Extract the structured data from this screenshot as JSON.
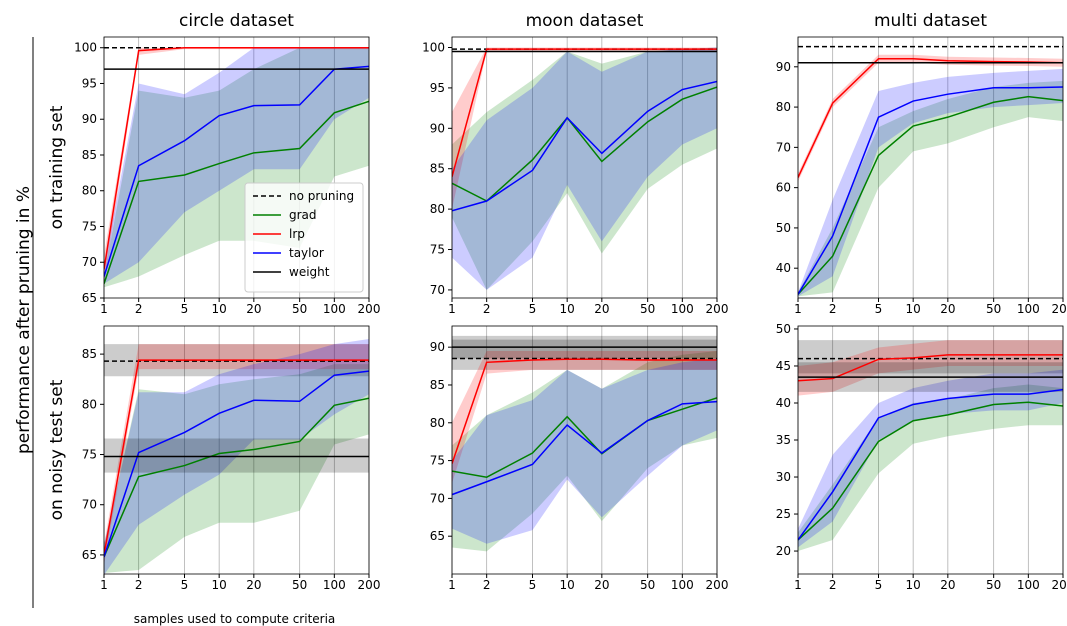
{
  "figure_ylabel": "performance after pruning in %",
  "chart_data": [
    {
      "type": "line",
      "title": "circle dataset",
      "ylabel": "on training set",
      "xscale": "log",
      "grid": "x",
      "legend": "lower right",
      "x": [
        1,
        2,
        5,
        10,
        20,
        50,
        100,
        200
      ],
      "xlim": [
        1,
        200
      ],
      "xticks": [
        1,
        2,
        5,
        10,
        20,
        50,
        100,
        200
      ],
      "ylim": [
        65,
        101.5
      ],
      "yticks": [
        65,
        70,
        75,
        80,
        85,
        90,
        95,
        100
      ],
      "series": [
        {
          "name": "no pruning",
          "color": "#000000",
          "dash": true,
          "values": [
            100,
            100,
            100,
            100,
            100,
            100,
            100,
            100
          ]
        },
        {
          "name": "grad",
          "color": "#008000",
          "values": [
            67,
            81.3,
            82.2,
            83.8,
            85.3,
            85.9,
            90.9,
            92.5
          ],
          "lower": [
            66.5,
            68,
            71,
            73,
            73,
            72,
            82,
            83.5
          ],
          "upper": [
            68,
            94,
            93,
            94,
            97,
            100,
            100,
            100
          ]
        },
        {
          "name": "lrp",
          "color": "#ff0000",
          "values": [
            69,
            99.6,
            100,
            100,
            100,
            100,
            100,
            100
          ],
          "lower": [
            67,
            99,
            99.8,
            99.8,
            99.8,
            99.8,
            99.8,
            99.8
          ],
          "upper": [
            71,
            100,
            100,
            100,
            100,
            100,
            100,
            100
          ]
        },
        {
          "name": "taylor",
          "color": "#0000ff",
          "values": [
            68,
            83.5,
            87,
            90.5,
            91.9,
            92,
            97,
            97.4
          ],
          "lower": [
            67,
            70,
            77,
            80,
            83,
            83,
            90,
            93
          ],
          "upper": [
            69.5,
            95,
            93.5,
            96.5,
            100,
            100,
            100,
            100
          ]
        },
        {
          "name": "weight",
          "color": "#000000",
          "values": [
            97,
            97,
            97,
            97,
            97,
            97,
            97,
            97
          ]
        }
      ]
    },
    {
      "type": "line",
      "title": "moon dataset",
      "xscale": "log",
      "grid": "x",
      "x": [
        1,
        2,
        5,
        10,
        20,
        50,
        100,
        200
      ],
      "xlim": [
        1,
        200
      ],
      "xticks": [
        1,
        2,
        5,
        10,
        20,
        50,
        100,
        200
      ],
      "ylim": [
        69,
        101.3
      ],
      "yticks": [
        70,
        75,
        80,
        85,
        90,
        95,
        100
      ],
      "series": [
        {
          "name": "no pruning",
          "color": "#000000",
          "dash": true,
          "values": [
            99.8,
            99.8,
            99.8,
            99.8,
            99.8,
            99.8,
            99.8,
            99.8
          ]
        },
        {
          "name": "grad",
          "color": "#008000",
          "values": [
            83.2,
            81,
            86.1,
            91.3,
            85.9,
            90.8,
            93.6,
            95.1
          ],
          "lower": [
            79,
            70,
            76,
            82,
            74.5,
            82.5,
            85.5,
            87.5
          ],
          "upper": [
            88,
            92,
            96,
            99.5,
            98,
            99.5,
            99.8,
            100
          ]
        },
        {
          "name": "lrp",
          "color": "#ff0000",
          "values": [
            84,
            99.8,
            99.8,
            99.8,
            99.8,
            99.8,
            99.8,
            99.8
          ],
          "lower": [
            80,
            99.5,
            99.5,
            99.5,
            99.5,
            99.5,
            99.5,
            99.5
          ],
          "upper": [
            92,
            100,
            100,
            100,
            100,
            100,
            100,
            100
          ]
        },
        {
          "name": "taylor",
          "color": "#0000ff",
          "values": [
            79.8,
            81,
            84.8,
            91.3,
            86.9,
            92.1,
            94.8,
            95.8
          ],
          "lower": [
            74,
            70,
            74,
            83,
            76,
            84,
            88,
            90
          ],
          "upper": [
            85,
            91,
            95,
            99.5,
            97,
            99.5,
            99.8,
            100
          ]
        },
        {
          "name": "weight",
          "color": "#000000",
          "values": [
            99.5,
            99.5,
            99.5,
            99.5,
            99.5,
            99.5,
            99.5,
            99.5
          ]
        }
      ]
    },
    {
      "type": "line",
      "title": "multi dataset",
      "xscale": "log",
      "grid": "x",
      "x": [
        1,
        2,
        5,
        10,
        20,
        50,
        100,
        200
      ],
      "xlim": [
        1,
        200
      ],
      "xticks": [
        1,
        2,
        5,
        10,
        20,
        50,
        100,
        200
      ],
      "ylim": [
        32.6,
        97.4
      ],
      "yticks": [
        40,
        50,
        60,
        70,
        80,
        90
      ],
      "series": [
        {
          "name": "no pruning",
          "color": "#000000",
          "dash": true,
          "values": [
            95,
            95,
            95,
            95,
            95,
            95,
            95,
            95
          ]
        },
        {
          "name": "grad",
          "color": "#008000",
          "values": [
            33.5,
            43,
            68,
            75.3,
            77.5,
            81.2,
            82.6,
            81.6
          ],
          "lower": [
            33,
            34,
            60,
            69,
            71,
            75,
            77.5,
            76.5
          ],
          "upper": [
            34,
            50,
            75,
            79,
            82,
            85,
            86,
            86.5
          ]
        },
        {
          "name": "lrp",
          "color": "#ff0000",
          "values": [
            62.5,
            81,
            92,
            92,
            91.5,
            91.3,
            91.2,
            91
          ],
          "lower": [
            61.5,
            80,
            91,
            91,
            90.5,
            90.3,
            90.2,
            90
          ],
          "upper": [
            63.5,
            82,
            93,
            93,
            92.5,
            92.3,
            92.2,
            92
          ]
        },
        {
          "name": "taylor",
          "color": "#0000ff",
          "values": [
            33.5,
            48,
            77.5,
            81.5,
            83.2,
            84.8,
            84.8,
            85
          ],
          "lower": [
            33,
            38,
            70,
            76,
            78.5,
            80,
            80.5,
            81
          ],
          "upper": [
            34,
            57,
            84,
            86,
            87.5,
            88.5,
            89,
            89.5
          ]
        },
        {
          "name": "weight",
          "color": "#000000",
          "values": [
            91,
            91,
            91,
            91,
            91,
            91,
            91,
            91
          ]
        }
      ]
    },
    {
      "type": "line",
      "ylabel": "on noisy test set",
      "xlabel": "samples used to compute criteria",
      "xscale": "log",
      "grid": "x",
      "x": [
        1,
        2,
        5,
        10,
        20,
        50,
        100,
        200
      ],
      "xlim": [
        1,
        200
      ],
      "xticks": [
        1,
        2,
        5,
        10,
        20,
        50,
        100,
        200
      ],
      "ylim": [
        63.1,
        87.8
      ],
      "yticks": [
        65,
        70,
        75,
        80,
        85
      ],
      "series": [
        {
          "name": "no pruning",
          "color": "#000000",
          "dash": true,
          "values": [
            84.3,
            84.3,
            84.3,
            84.3,
            84.3,
            84.3,
            84.3,
            84.3
          ],
          "lower": [
            82.8,
            82.8,
            82.8,
            82.8,
            82.8,
            82.8,
            82.8,
            82.8
          ],
          "upper": [
            86,
            86,
            86,
            86,
            86,
            86,
            86,
            86
          ]
        },
        {
          "name": "grad",
          "color": "#008000",
          "values": [
            64.8,
            72.8,
            73.9,
            75.1,
            75.5,
            76.3,
            79.9,
            80.6
          ],
          "lower": [
            63.2,
            63.5,
            66.8,
            68.2,
            68.2,
            69.4,
            76,
            77
          ],
          "upper": [
            66,
            81.5,
            81,
            82,
            82.5,
            83,
            84,
            84
          ]
        },
        {
          "name": "lrp",
          "color": "#ff0000",
          "values": [
            65,
            84.4,
            84.4,
            84.4,
            84.4,
            84.4,
            84.4,
            84.4
          ],
          "lower": [
            64,
            83.5,
            83.5,
            83.5,
            83.5,
            83.5,
            83.5,
            83.5
          ],
          "upper": [
            66,
            86,
            86,
            86,
            86,
            86,
            86,
            86
          ]
        },
        {
          "name": "taylor",
          "color": "#0000ff",
          "values": [
            64.8,
            75.2,
            77.2,
            79.1,
            80.4,
            80.3,
            82.9,
            83.3
          ],
          "lower": [
            63,
            68,
            71,
            73,
            76.5,
            76.5,
            79,
            81
          ],
          "upper": [
            66,
            81.2,
            81.2,
            83,
            84,
            85,
            86,
            86.5
          ]
        },
        {
          "name": "weight",
          "color": "#000000",
          "values": [
            74.8,
            74.8,
            74.8,
            74.8,
            74.8,
            74.8,
            74.8,
            74.8
          ],
          "lower": [
            73.2,
            73.2,
            73.2,
            73.2,
            73.2,
            73.2,
            73.2,
            73.2
          ],
          "upper": [
            76.6,
            76.6,
            76.6,
            76.6,
            76.6,
            76.6,
            76.6,
            76.6
          ]
        }
      ]
    },
    {
      "type": "line",
      "xscale": "log",
      "grid": "x",
      "x": [
        1,
        2,
        5,
        10,
        20,
        50,
        100,
        200
      ],
      "xlim": [
        1,
        200
      ],
      "xticks": [
        1,
        2,
        5,
        10,
        20,
        50,
        100,
        200
      ],
      "ylim": [
        60,
        92.8
      ],
      "yticks": [
        65,
        70,
        75,
        80,
        85,
        90
      ],
      "series": [
        {
          "name": "no pruning",
          "color": "#000000",
          "dash": true,
          "values": [
            88.5,
            88.5,
            88.5,
            88.5,
            88.5,
            88.5,
            88.5,
            88.5
          ],
          "lower": [
            87,
            87,
            87,
            87,
            87,
            87,
            87,
            87
          ],
          "upper": [
            91,
            91,
            91,
            91,
            91,
            91,
            91,
            91
          ]
        },
        {
          "name": "grad",
          "color": "#008000",
          "values": [
            73.6,
            72.8,
            76,
            80.8,
            75.9,
            80.3,
            81.8,
            83.3
          ],
          "lower": [
            63.5,
            63,
            68,
            73,
            67,
            74,
            77,
            78
          ],
          "upper": [
            77,
            81,
            84,
            87,
            84.5,
            88,
            89,
            89.5
          ]
        },
        {
          "name": "lrp",
          "color": "#ff0000",
          "values": [
            74.6,
            88,
            88.3,
            88.4,
            88.4,
            88.3,
            88.3,
            88.3
          ],
          "lower": [
            72,
            86.5,
            87,
            87,
            87,
            87,
            87,
            87
          ],
          "upper": [
            80,
            89.5,
            89.5,
            89.5,
            89.5,
            89.5,
            89.5,
            89.5
          ]
        },
        {
          "name": "taylor",
          "color": "#0000ff",
          "values": [
            70.5,
            72.2,
            74.5,
            79.7,
            76,
            80.3,
            82.5,
            82.8
          ],
          "lower": [
            66,
            64,
            65.8,
            72.5,
            67.5,
            73,
            77,
            79
          ],
          "upper": [
            75,
            81,
            83,
            87,
            84.5,
            87,
            88,
            88.5
          ]
        },
        {
          "name": "weight",
          "color": "#000000",
          "values": [
            90,
            90,
            90,
            90,
            90,
            90,
            90,
            90
          ],
          "lower": [
            88.5,
            88.5,
            88.5,
            88.5,
            88.5,
            88.5,
            88.5,
            88.5
          ],
          "upper": [
            91.5,
            91.5,
            91.5,
            91.5,
            91.5,
            91.5,
            91.5,
            91.5
          ]
        }
      ]
    },
    {
      "type": "line",
      "xscale": "log",
      "grid": "x",
      "x": [
        1,
        2,
        5,
        10,
        20,
        50,
        100,
        200
      ],
      "xlim": [
        1,
        200
      ],
      "xticks": [
        1,
        2,
        5,
        10,
        20,
        50,
        100,
        200
      ],
      "ylim": [
        16.9,
        50.4
      ],
      "yticks": [
        20,
        25,
        30,
        35,
        40,
        45,
        50
      ],
      "series": [
        {
          "name": "no pruning",
          "color": "#000000",
          "dash": true,
          "values": [
            46,
            46,
            46,
            46,
            46,
            46,
            46,
            46
          ],
          "lower": [
            44,
            44,
            44,
            44,
            44,
            44,
            44,
            44
          ],
          "upper": [
            48.5,
            48.5,
            48.5,
            48.5,
            48.5,
            48.5,
            48.5,
            48.5
          ]
        },
        {
          "name": "grad",
          "color": "#008000",
          "values": [
            21.5,
            25.8,
            34.8,
            37.6,
            38.4,
            39.8,
            40.1,
            39.6
          ],
          "lower": [
            20,
            21.5,
            30.5,
            34.5,
            35.5,
            36.5,
            37,
            37
          ],
          "upper": [
            22.5,
            29,
            38,
            40,
            40.5,
            42,
            42.5,
            42
          ]
        },
        {
          "name": "lrp",
          "color": "#ff0000",
          "values": [
            43,
            43.3,
            45.9,
            46.1,
            46.5,
            46.5,
            46.5,
            46.5
          ],
          "lower": [
            41,
            41.5,
            44,
            44.5,
            45,
            45,
            45,
            45
          ],
          "upper": [
            45,
            45.5,
            47.5,
            48,
            48.5,
            48.5,
            48.5,
            48.5
          ]
        },
        {
          "name": "taylor",
          "color": "#0000ff",
          "values": [
            21.5,
            28,
            38,
            39.8,
            40.6,
            41.2,
            41.2,
            41.8
          ],
          "lower": [
            20.5,
            24,
            35,
            37.5,
            38.5,
            39,
            39,
            40
          ],
          "upper": [
            23,
            33,
            40,
            42,
            43,
            44,
            44,
            44.5
          ]
        },
        {
          "name": "weight",
          "color": "#000000",
          "values": [
            43.5,
            43.5,
            43.5,
            43.5,
            43.5,
            43.5,
            43.5,
            43.5
          ],
          "lower": [
            41.5,
            41.5,
            41.5,
            41.5,
            41.5,
            41.5,
            41.5,
            41.5
          ],
          "upper": [
            45.5,
            45.5,
            45.5,
            45.5,
            45.5,
            45.5,
            45.5,
            45.5
          ]
        }
      ]
    }
  ]
}
